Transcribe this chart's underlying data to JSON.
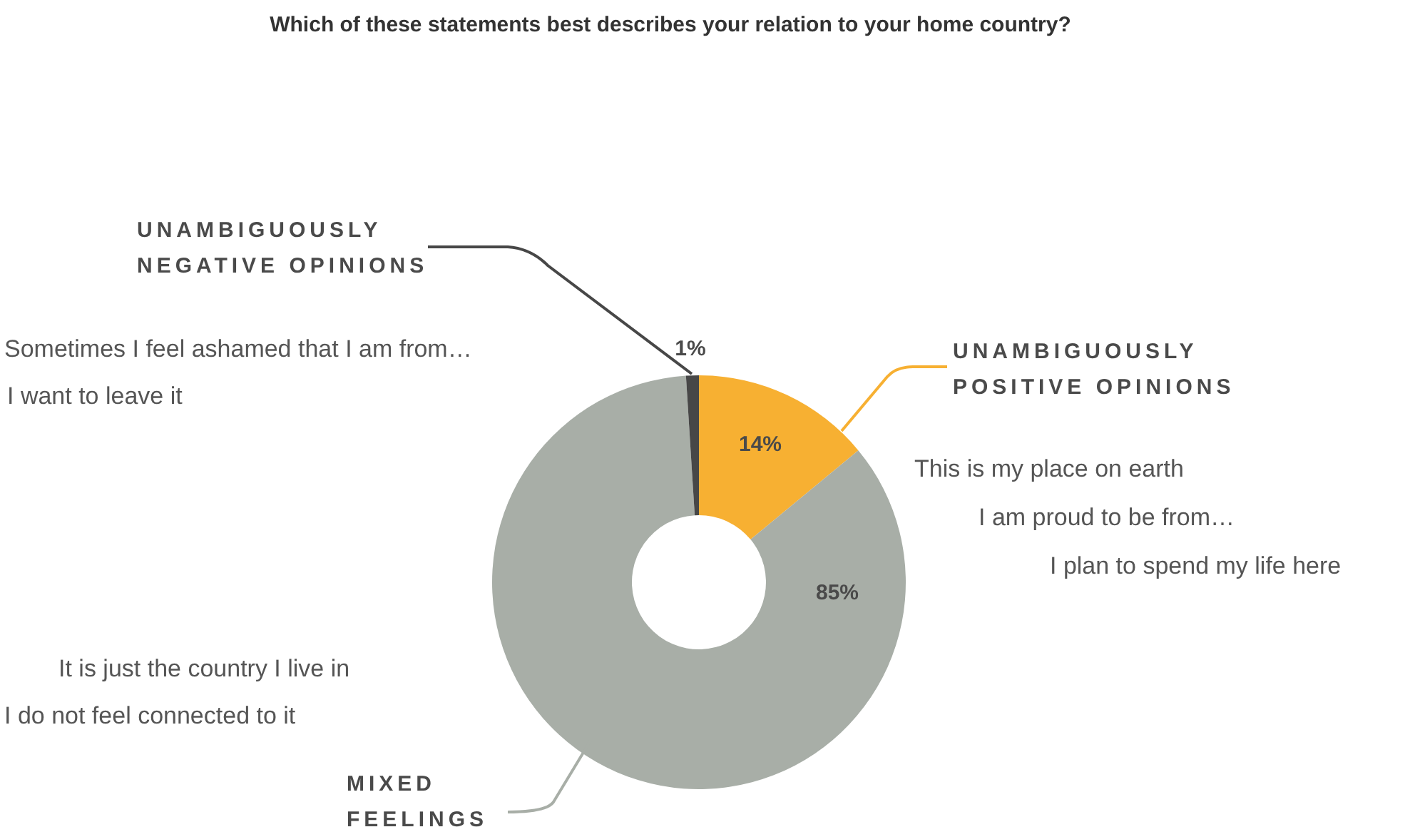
{
  "chart_data": {
    "type": "donut",
    "title": "Which of these statements best describes your relation to your home country?",
    "categories": [
      "UNAMBIGUOUSLY POSITIVE OPINIONS",
      "MIXED FEELINGS",
      "UNAMBIGUOUSLY NEGATIVE OPINIONS"
    ],
    "values": [
      14,
      85,
      1
    ],
    "value_labels": [
      "14%",
      "85%",
      "1%"
    ],
    "colors": [
      "#f7b032",
      "#a8aea7",
      "#474747"
    ],
    "annotations": [
      "Sometimes I feel ashamed that I am from…",
      "I want to leave it",
      "This is my place on earth",
      "I am proud to be from…",
      "I plan to spend my life here",
      "It is just the country I live in",
      "I do not feel connected to it"
    ]
  }
}
